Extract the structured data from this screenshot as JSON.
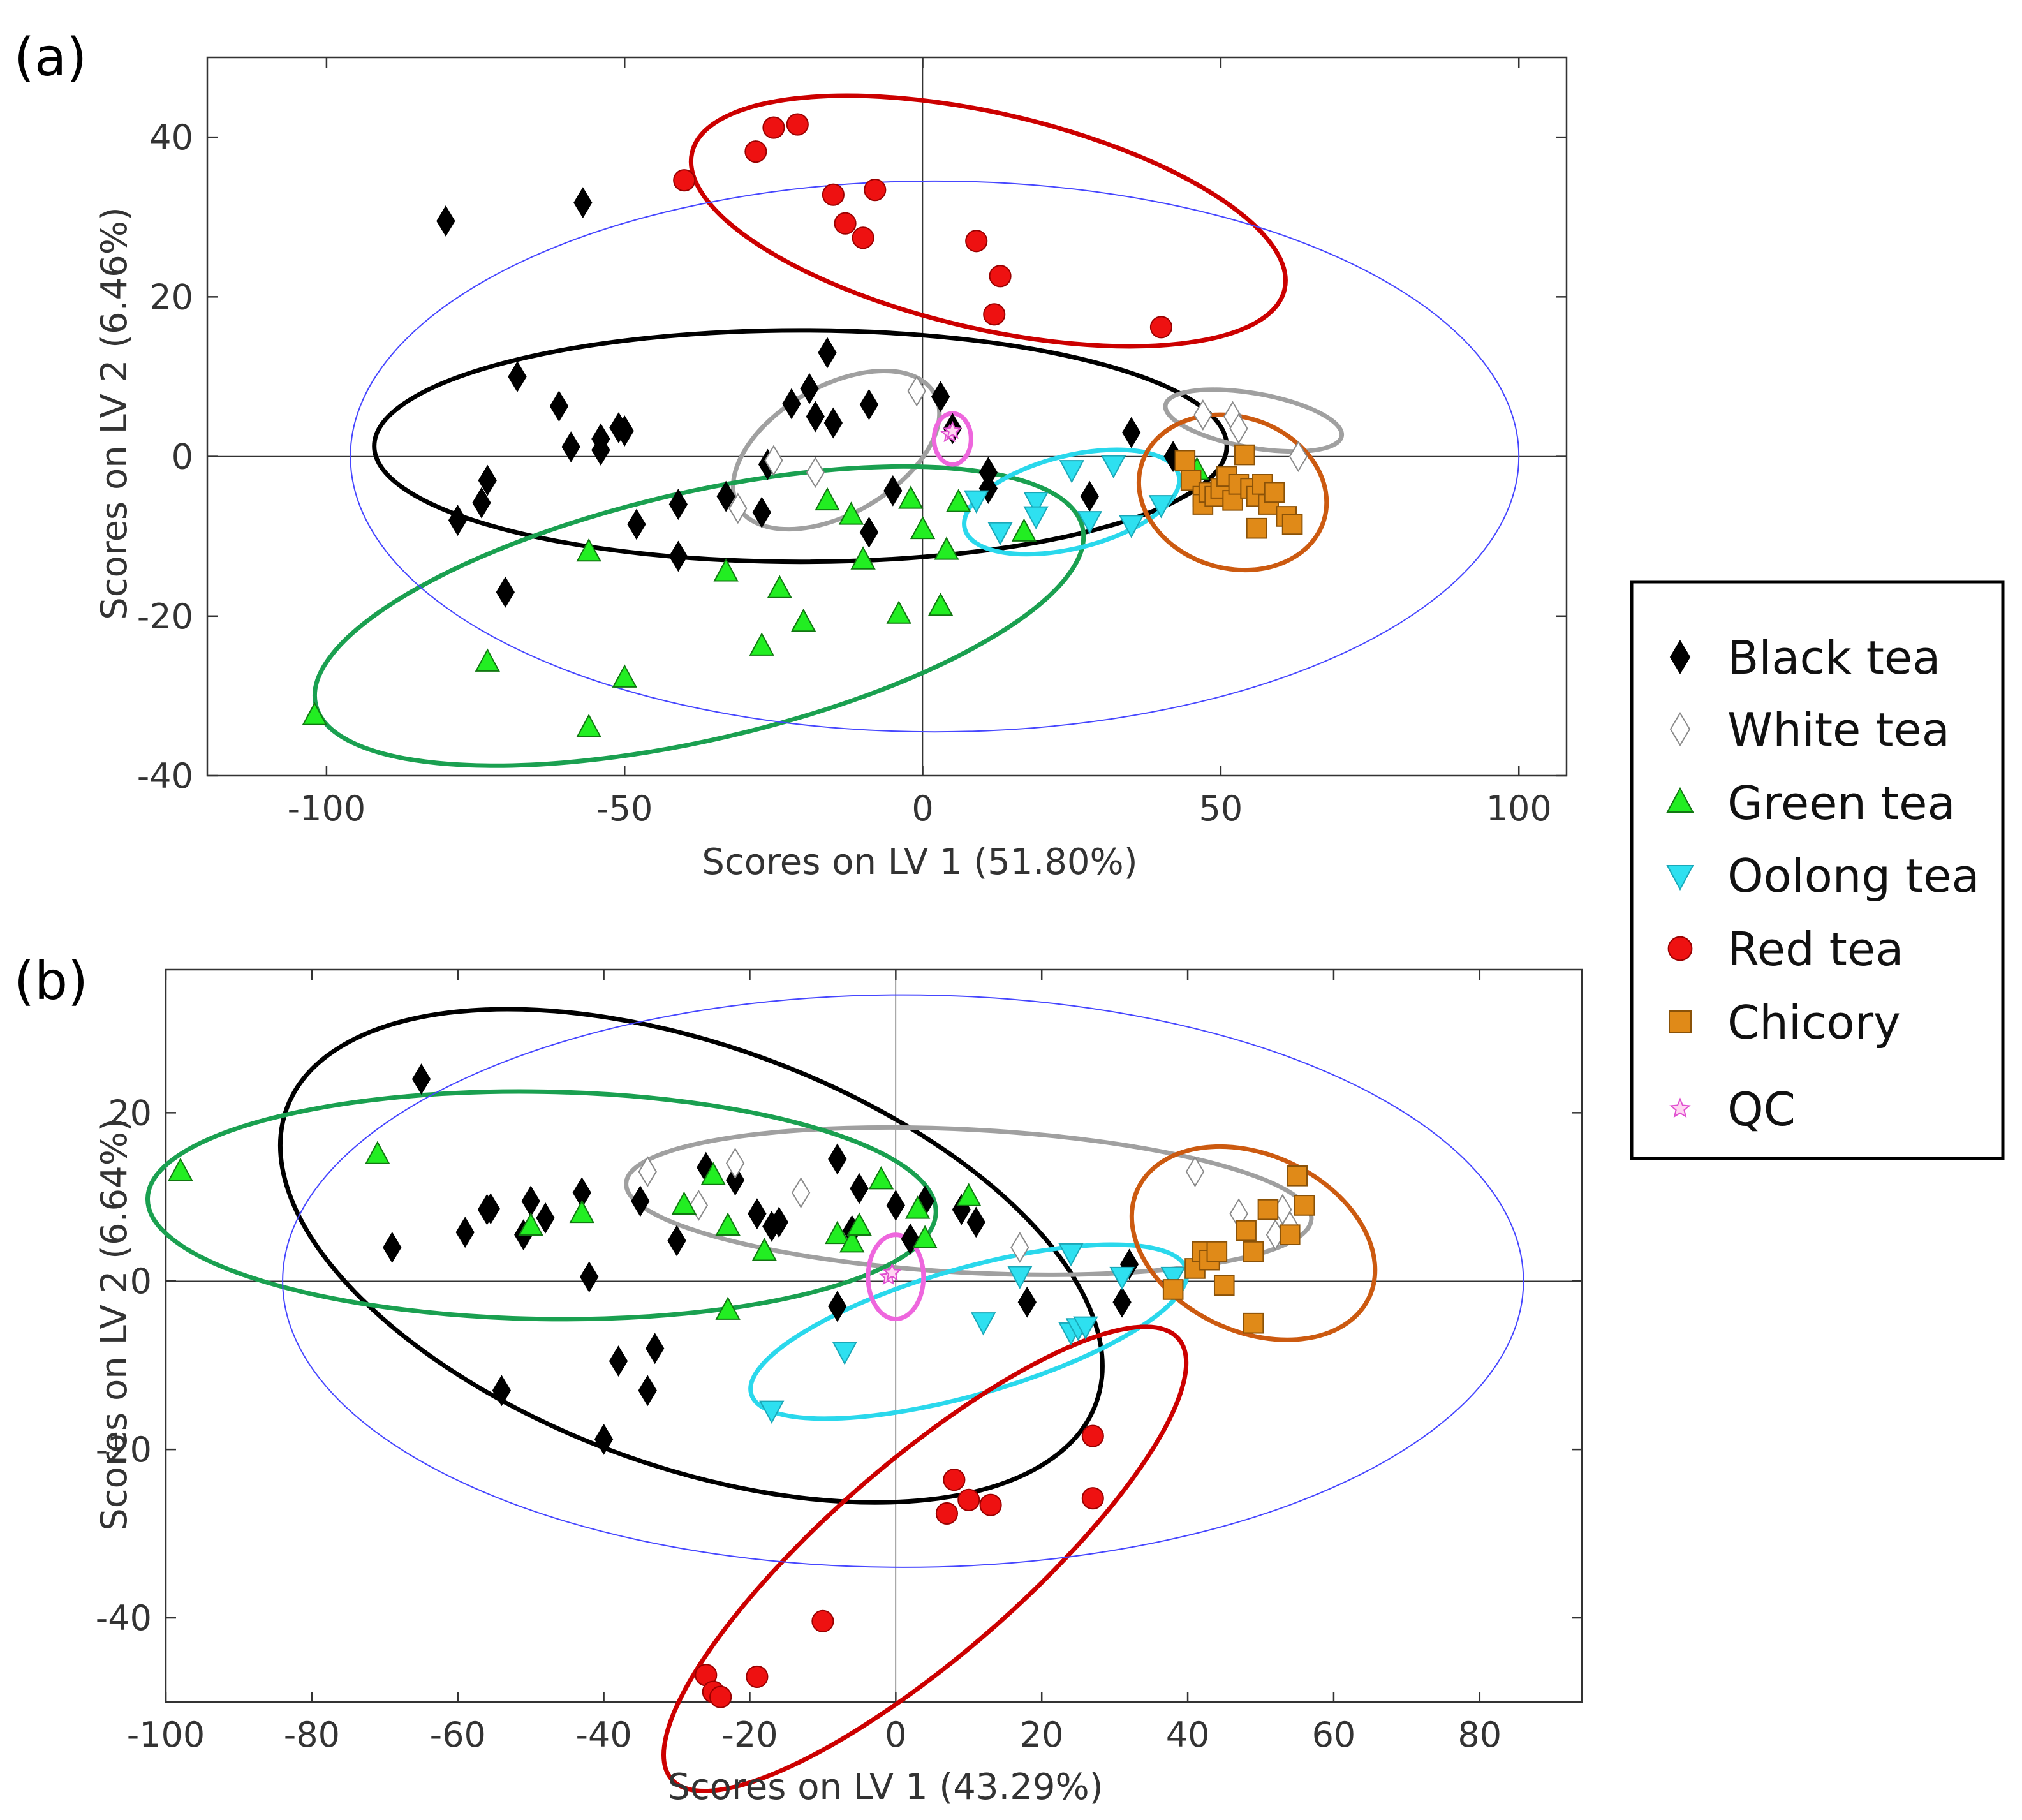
{
  "legend": {
    "entries": [
      {
        "label": "Black tea",
        "marker": "diamond",
        "fill": "#000000",
        "stroke": "#000000"
      },
      {
        "label": "White tea",
        "marker": "diamond",
        "fill": "#ffffff",
        "stroke": "#8a8a8a"
      },
      {
        "label": "Green tea",
        "marker": "triangle-up",
        "fill": "#22ee22",
        "stroke": "#117711"
      },
      {
        "label": "Oolong tea",
        "marker": "triangle-down",
        "fill": "#2ee0f0",
        "stroke": "#1aa8b8"
      },
      {
        "label": "Red tea",
        "marker": "circle",
        "fill": "#ee1111",
        "stroke": "#990000"
      },
      {
        "label": "Chicory",
        "marker": "square",
        "fill": "#e08a18",
        "stroke": "#8a5208"
      },
      {
        "label": "QC",
        "marker": "star",
        "fill": "#ffd6f2",
        "stroke": "#e050d0"
      }
    ]
  },
  "chart_data": [
    {
      "type": "scatter",
      "panel_label": "(a)",
      "xlabel": "Scores on LV 1 (51.80%)",
      "ylabel": "Scores on LV 2 (6.46%)",
      "xlim": [
        -120,
        108
      ],
      "ylim": [
        -40,
        50
      ],
      "xticks": [
        -100,
        -50,
        0,
        50,
        100
      ],
      "yticks": [
        -40,
        -20,
        0,
        20,
        40
      ],
      "series": [
        {
          "name": "Black tea",
          "points": [
            [
              -80,
              29.5
            ],
            [
              -57,
              31.8
            ],
            [
              -68,
              10
            ],
            [
              -61,
              6.3
            ],
            [
              -59,
              1.2
            ],
            [
              -54,
              0.8
            ],
            [
              -54,
              2.2
            ],
            [
              -51,
              3.6
            ],
            [
              -50,
              3.2
            ],
            [
              -73,
              -3
            ],
            [
              -74,
              -5.8
            ],
            [
              -78,
              -8
            ],
            [
              -70,
              -17
            ],
            [
              -48,
              -8.5
            ],
            [
              -41,
              -12.5
            ],
            [
              -41,
              -6
            ],
            [
              -33,
              -5
            ],
            [
              -27,
              -7
            ],
            [
              -26,
              -1
            ],
            [
              -22,
              6.6
            ],
            [
              -19,
              8.5
            ],
            [
              -18,
              5
            ],
            [
              -15,
              4.2
            ],
            [
              -16,
              13
            ],
            [
              -9,
              6.5
            ],
            [
              -9,
              -9.5
            ],
            [
              -5,
              -4.3
            ],
            [
              3,
              7.5
            ],
            [
              5,
              3.5
            ],
            [
              11,
              -2
            ],
            [
              11,
              -4
            ],
            [
              28,
              -5
            ],
            [
              35,
              3
            ],
            [
              42,
              0
            ]
          ]
        },
        {
          "name": "White tea",
          "points": [
            [
              -1,
              8.2
            ],
            [
              -25,
              -0.5
            ],
            [
              -18,
              -2
            ],
            [
              -31,
              -6.5
            ],
            [
              47,
              5.2
            ],
            [
              52,
              5
            ],
            [
              53,
              3.5
            ],
            [
              63,
              0
            ]
          ]
        },
        {
          "name": "Green tea",
          "points": [
            [
              -102,
              -32.5
            ],
            [
              -73,
              -25.8
            ],
            [
              -56,
              -12
            ],
            [
              -56,
              -34
            ],
            [
              -50,
              -27.8
            ],
            [
              -33,
              -14.5
            ],
            [
              -24,
              -16.6
            ],
            [
              -27,
              -23.8
            ],
            [
              -20,
              -20.8
            ],
            [
              -16,
              -5.6
            ],
            [
              -12,
              -7.4
            ],
            [
              -10,
              -13
            ],
            [
              -4,
              -19.8
            ],
            [
              -2,
              -5.4
            ],
            [
              0,
              -9.2
            ],
            [
              3,
              -18.8
            ],
            [
              4,
              -11.8
            ],
            [
              6,
              -5.8
            ],
            [
              17,
              -9.5
            ],
            [
              46,
              -1.8
            ]
          ]
        },
        {
          "name": "Oolong tea",
          "points": [
            [
              9,
              -5.4
            ],
            [
              13,
              -9.4
            ],
            [
              19,
              -5.6
            ],
            [
              19,
              -7.4
            ],
            [
              25,
              -1.6
            ],
            [
              28,
              -8
            ],
            [
              32,
              -1
            ],
            [
              35,
              -8.5
            ],
            [
              40,
              -6
            ]
          ]
        },
        {
          "name": "Red tea",
          "points": [
            [
              -40,
              34.6
            ],
            [
              -28,
              38.2
            ],
            [
              -25,
              41.2
            ],
            [
              -21,
              41.6
            ],
            [
              -15,
              32.8
            ],
            [
              -13,
              29.2
            ],
            [
              -10,
              27.4
            ],
            [
              -8,
              33.4
            ],
            [
              9,
              27
            ],
            [
              13,
              22.6
            ],
            [
              12,
              17.8
            ],
            [
              40,
              16.2
            ]
          ]
        },
        {
          "name": "Chicory",
          "points": [
            [
              44,
              -0.5
            ],
            [
              45,
              -3
            ],
            [
              47,
              -5
            ],
            [
              47,
              -6
            ],
            [
              48,
              -4.5
            ],
            [
              49,
              -5
            ],
            [
              50,
              -4
            ],
            [
              51,
              -2.5
            ],
            [
              52,
              -5.5
            ],
            [
              53,
              -3.5
            ],
            [
              54,
              0.2
            ],
            [
              55,
              -4
            ],
            [
              56,
              -5
            ],
            [
              57,
              -3.5
            ],
            [
              58,
              -6
            ],
            [
              59,
              -4.5
            ],
            [
              56,
              -9
            ],
            [
              61,
              -7.5
            ],
            [
              62,
              -8.5
            ]
          ]
        },
        {
          "name": "QC",
          "points": [
            [
              4.5,
              2.8
            ],
            [
              5,
              3.2
            ]
          ]
        }
      ],
      "ellipses": [
        {
          "group": "Black tea",
          "cx": -20.5,
          "cy": 1.3,
          "rx": 71.5,
          "ry": 14.5,
          "angle_deg": 0,
          "color": "#000000"
        },
        {
          "group": "White tea",
          "cx": -14.5,
          "cy": 0.8,
          "rx": 19,
          "ry": 8,
          "angle_deg": 30,
          "color": "#a0a0a0"
        },
        {
          "group": "White tea",
          "cx": 55.5,
          "cy": 4.5,
          "rx": 15,
          "ry": 3.4,
          "angle_deg": -10,
          "color": "#a0a0a0"
        },
        {
          "group": "Green tea",
          "cx": -37.5,
          "cy": -20,
          "rx": 66,
          "ry": 15.5,
          "angle_deg": 13,
          "color": "#1aa050"
        },
        {
          "group": "Oolong tea",
          "cx": 25,
          "cy": -5.7,
          "rx": 18.5,
          "ry": 5.8,
          "angle_deg": 14,
          "color": "#2ad8ec"
        },
        {
          "group": "Red tea",
          "cx": 11,
          "cy": 29.5,
          "rx": 51,
          "ry": 13.5,
          "angle_deg": -13,
          "color": "#cc0000"
        },
        {
          "group": "Chicory",
          "cx": 52,
          "cy": -4.5,
          "rx": 16,
          "ry": 9.5,
          "angle_deg": -17,
          "color": "#cc5a10"
        },
        {
          "group": "QC",
          "cx": 5,
          "cy": 2.2,
          "rx": 3.1,
          "ry": 3.2,
          "angle_deg": 0,
          "color": "#ee66dd"
        },
        {
          "group": "Confidence limit",
          "cx": 2,
          "cy": 0,
          "rx": 98,
          "ry": 34.5,
          "angle_deg": 0,
          "color": "#4646ff"
        }
      ]
    },
    {
      "type": "scatter",
      "panel_label": "(b)",
      "xlabel": "Scores on LV 1 (43.29%)",
      "ylabel": "Scores on LV 2 (6.64%)",
      "xlim": [
        -100,
        94
      ],
      "ylim": [
        -50,
        37
      ],
      "xticks": [
        -100,
        -80,
        -60,
        -40,
        -20,
        0,
        20,
        40,
        60,
        80
      ],
      "yticks": [
        -40,
        -20,
        0,
        20
      ],
      "series": [
        {
          "name": "Black tea",
          "points": [
            [
              -65,
              24
            ],
            [
              -69,
              4
            ],
            [
              -59,
              5.8
            ],
            [
              -56,
              8.5
            ],
            [
              -55.5,
              8.6
            ],
            [
              -51,
              5.5
            ],
            [
              -50,
              9.5
            ],
            [
              -48,
              7.5
            ],
            [
              -43,
              10.5
            ],
            [
              -42,
              0.5
            ],
            [
              -35,
              9.5
            ],
            [
              -30,
              4.8
            ],
            [
              -26,
              13.5
            ],
            [
              -22,
              12
            ],
            [
              -19,
              8
            ],
            [
              -17,
              6.5
            ],
            [
              -16,
              7
            ],
            [
              -8,
              14.5
            ],
            [
              -6,
              6
            ],
            [
              -5,
              11
            ],
            [
              0,
              9
            ],
            [
              2,
              5
            ],
            [
              4,
              9.5
            ],
            [
              9,
              8.5
            ],
            [
              11,
              7
            ],
            [
              18,
              -2.5
            ],
            [
              32,
              2
            ],
            [
              31,
              -2.5
            ],
            [
              -8,
              -3
            ],
            [
              -33,
              -8
            ],
            [
              -38,
              -9.5
            ],
            [
              -34,
              -13
            ],
            [
              -54,
              -13
            ],
            [
              -40,
              -18.8
            ]
          ]
        },
        {
          "name": "White tea",
          "points": [
            [
              -34,
              13
            ],
            [
              -27,
              9
            ],
            [
              -22,
              14
            ],
            [
              -13,
              10.5
            ],
            [
              17,
              4
            ],
            [
              41,
              13
            ],
            [
              47,
              8
            ],
            [
              52,
              5.5
            ],
            [
              53,
              8.5
            ],
            [
              54,
              6.5
            ]
          ]
        },
        {
          "name": "Green tea",
          "points": [
            [
              -98,
              13
            ],
            [
              -71,
              15
            ],
            [
              -50,
              6.5
            ],
            [
              -43,
              8
            ],
            [
              -29,
              9
            ],
            [
              -25,
              12.5
            ],
            [
              -23,
              6.5
            ],
            [
              -18,
              3.5
            ],
            [
              -8,
              5.5
            ],
            [
              -6,
              4.5
            ],
            [
              -5,
              6.5
            ],
            [
              -2,
              12
            ],
            [
              3,
              8.5
            ],
            [
              4,
              5
            ],
            [
              -23,
              -3.5
            ],
            [
              10,
              10
            ]
          ]
        },
        {
          "name": "Oolong tea",
          "points": [
            [
              -17,
              -15.3
            ],
            [
              -7,
              -8.3
            ],
            [
              12,
              -4.8
            ],
            [
              17,
              0.7
            ],
            [
              24,
              -6
            ],
            [
              24,
              3.4
            ],
            [
              25,
              -5.5
            ],
            [
              26,
              -5.3
            ],
            [
              31,
              0.6
            ],
            [
              38,
              0.6
            ]
          ]
        },
        {
          "name": "Red tea",
          "points": [
            [
              27,
              -18.4
            ],
            [
              8,
              -23.6
            ],
            [
              10,
              -26
            ],
            [
              13,
              -26.6
            ],
            [
              7,
              -27.6
            ],
            [
              27,
              -25.8
            ],
            [
              -10,
              -40.4
            ],
            [
              -26,
              -46.8
            ],
            [
              -25,
              -48.8
            ],
            [
              -24,
              -49.4
            ],
            [
              -19,
              -47
            ]
          ]
        },
        {
          "name": "Chicory",
          "points": [
            [
              38,
              -1
            ],
            [
              41,
              1.5
            ],
            [
              42,
              3.5
            ],
            [
              43,
              2.5
            ],
            [
              44,
              3.5
            ],
            [
              45,
              -0.5
            ],
            [
              48,
              6
            ],
            [
              49,
              3.5
            ],
            [
              49,
              -5
            ],
            [
              51,
              8.5
            ],
            [
              54,
              5.5
            ],
            [
              55,
              12.5
            ],
            [
              56,
              9
            ]
          ]
        },
        {
          "name": "QC",
          "points": [
            [
              -1,
              0.5
            ],
            [
              -0.5,
              1
            ]
          ]
        }
      ],
      "ellipses": [
        {
          "group": "Black tea",
          "cx": -28,
          "cy": 3,
          "rx": 59,
          "ry": 25,
          "angle_deg": -20,
          "color": "#000000"
        },
        {
          "group": "White tea",
          "cx": 10,
          "cy": 9.5,
          "rx": 47,
          "ry": 8.5,
          "angle_deg": -3,
          "color": "#a0a0a0"
        },
        {
          "group": "Green tea",
          "cx": -48.5,
          "cy": 9,
          "rx": 54,
          "ry": 13.5,
          "angle_deg": -1,
          "color": "#1aa050"
        },
        {
          "group": "Oolong tea",
          "cx": 10,
          "cy": -6,
          "rx": 31,
          "ry": 7.5,
          "angle_deg": 16,
          "color": "#2ad8ec"
        },
        {
          "group": "Red tea",
          "cx": 4,
          "cy": -33,
          "rx": 46,
          "ry": 11.5,
          "angle_deg": 41,
          "color": "#cc0000"
        },
        {
          "group": "Chicory",
          "cx": 49,
          "cy": 4.5,
          "rx": 17.5,
          "ry": 10.5,
          "angle_deg": -25,
          "color": "#cc5a10"
        },
        {
          "group": "QC",
          "cx": 0,
          "cy": 0.5,
          "rx": 3.8,
          "ry": 5,
          "angle_deg": 0,
          "color": "#ee66dd"
        },
        {
          "group": "Confidence limit",
          "cx": 1,
          "cy": 0,
          "rx": 85,
          "ry": 34,
          "angle_deg": 0,
          "color": "#4646ff"
        }
      ]
    }
  ]
}
